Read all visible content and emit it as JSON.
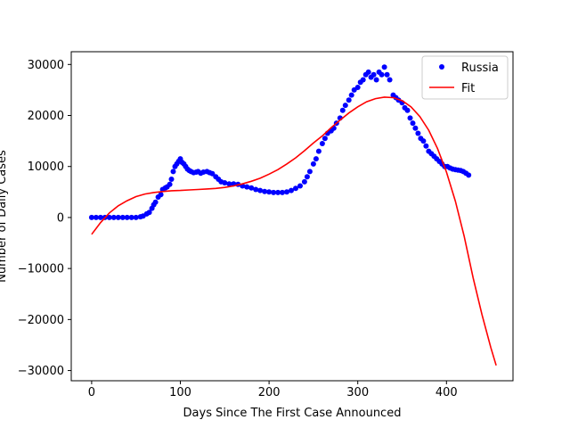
{
  "chart_data": {
    "type": "scatter",
    "xlabel": "Days Since The First Case Announced",
    "ylabel": "Number of Daily Cases",
    "xlim": [
      -23,
      475
    ],
    "ylim": [
      -32000,
      32500
    ],
    "xticks": [
      0,
      100,
      200,
      300,
      400
    ],
    "yticks": [
      -30000,
      -20000,
      -10000,
      0,
      10000,
      20000,
      30000
    ],
    "legend_position": "top-right",
    "grid": false,
    "series": [
      {
        "name": "Russia",
        "kind": "scatter",
        "color": "#0000ff",
        "points": [
          [
            0,
            0
          ],
          [
            5,
            0
          ],
          [
            10,
            0
          ],
          [
            15,
            0
          ],
          [
            20,
            0
          ],
          [
            25,
            0
          ],
          [
            30,
            0
          ],
          [
            35,
            0
          ],
          [
            40,
            0
          ],
          [
            45,
            0
          ],
          [
            50,
            0
          ],
          [
            55,
            150
          ],
          [
            58,
            300
          ],
          [
            62,
            700
          ],
          [
            65,
            1000
          ],
          [
            68,
            1800
          ],
          [
            70,
            2500
          ],
          [
            72,
            3000
          ],
          [
            75,
            4000
          ],
          [
            78,
            4500
          ],
          [
            80,
            5500
          ],
          [
            83,
            5800
          ],
          [
            85,
            6000
          ],
          [
            88,
            6500
          ],
          [
            90,
            7500
          ],
          [
            92,
            9000
          ],
          [
            94,
            10000
          ],
          [
            96,
            10500
          ],
          [
            98,
            11000
          ],
          [
            100,
            11500
          ],
          [
            102,
            10800
          ],
          [
            104,
            10500
          ],
          [
            106,
            10000
          ],
          [
            108,
            9500
          ],
          [
            110,
            9200
          ],
          [
            112,
            9000
          ],
          [
            115,
            8800
          ],
          [
            118,
            8900
          ],
          [
            120,
            9000
          ],
          [
            123,
            8700
          ],
          [
            126,
            8900
          ],
          [
            130,
            9000
          ],
          [
            133,
            8800
          ],
          [
            136,
            8600
          ],
          [
            140,
            8000
          ],
          [
            143,
            7500
          ],
          [
            146,
            7000
          ],
          [
            150,
            6800
          ],
          [
            155,
            6600
          ],
          [
            160,
            6600
          ],
          [
            165,
            6500
          ],
          [
            170,
            6200
          ],
          [
            175,
            6000
          ],
          [
            180,
            5800
          ],
          [
            185,
            5500
          ],
          [
            190,
            5300
          ],
          [
            195,
            5100
          ],
          [
            200,
            5000
          ],
          [
            205,
            4900
          ],
          [
            210,
            4900
          ],
          [
            215,
            4900
          ],
          [
            220,
            5000
          ],
          [
            225,
            5300
          ],
          [
            230,
            5700
          ],
          [
            235,
            6200
          ],
          [
            240,
            7000
          ],
          [
            243,
            8000
          ],
          [
            246,
            9000
          ],
          [
            250,
            10500
          ],
          [
            253,
            11500
          ],
          [
            256,
            13000
          ],
          [
            260,
            14500
          ],
          [
            263,
            15500
          ],
          [
            266,
            16500
          ],
          [
            270,
            17000
          ],
          [
            273,
            17500
          ],
          [
            276,
            18500
          ],
          [
            280,
            19500
          ],
          [
            283,
            21000
          ],
          [
            286,
            22000
          ],
          [
            290,
            23000
          ],
          [
            293,
            24000
          ],
          [
            296,
            25000
          ],
          [
            300,
            25500
          ],
          [
            303,
            26500
          ],
          [
            306,
            27000
          ],
          [
            309,
            28000
          ],
          [
            312,
            28500
          ],
          [
            315,
            27500
          ],
          [
            318,
            28000
          ],
          [
            321,
            27000
          ],
          [
            324,
            28500
          ],
          [
            327,
            28000
          ],
          [
            330,
            29500
          ],
          [
            333,
            28000
          ],
          [
            336,
            27000
          ],
          [
            340,
            24000
          ],
          [
            343,
            23500
          ],
          [
            346,
            23000
          ],
          [
            350,
            22500
          ],
          [
            353,
            21500
          ],
          [
            356,
            21000
          ],
          [
            359,
            19500
          ],
          [
            362,
            18500
          ],
          [
            365,
            17500
          ],
          [
            368,
            16500
          ],
          [
            371,
            15500
          ],
          [
            374,
            15000
          ],
          [
            377,
            14000
          ],
          [
            380,
            13000
          ],
          [
            383,
            12500
          ],
          [
            386,
            12000
          ],
          [
            389,
            11500
          ],
          [
            392,
            11000
          ],
          [
            395,
            10500
          ],
          [
            398,
            10000
          ],
          [
            401,
            10000
          ],
          [
            404,
            9700
          ],
          [
            407,
            9500
          ],
          [
            410,
            9400
          ],
          [
            413,
            9300
          ],
          [
            416,
            9200
          ],
          [
            419,
            9000
          ],
          [
            422,
            8700
          ],
          [
            425,
            8300
          ]
        ]
      },
      {
        "name": "Fit",
        "kind": "line",
        "color": "#ff0000",
        "points": [
          [
            0,
            -3300
          ],
          [
            10,
            -1000
          ],
          [
            20,
            900
          ],
          [
            30,
            2300
          ],
          [
            40,
            3300
          ],
          [
            50,
            4100
          ],
          [
            60,
            4600
          ],
          [
            70,
            4900
          ],
          [
            80,
            5100
          ],
          [
            90,
            5250
          ],
          [
            100,
            5300
          ],
          [
            110,
            5400
          ],
          [
            120,
            5500
          ],
          [
            130,
            5600
          ],
          [
            140,
            5700
          ],
          [
            150,
            5900
          ],
          [
            160,
            6200
          ],
          [
            170,
            6600
          ],
          [
            180,
            7100
          ],
          [
            190,
            7700
          ],
          [
            200,
            8500
          ],
          [
            210,
            9400
          ],
          [
            220,
            10500
          ],
          [
            230,
            11700
          ],
          [
            240,
            13100
          ],
          [
            250,
            14600
          ],
          [
            260,
            16000
          ],
          [
            270,
            17600
          ],
          [
            280,
            19100
          ],
          [
            290,
            20500
          ],
          [
            300,
            21700
          ],
          [
            310,
            22700
          ],
          [
            320,
            23300
          ],
          [
            330,
            23600
          ],
          [
            340,
            23500
          ],
          [
            350,
            22900
          ],
          [
            360,
            21700
          ],
          [
            370,
            19800
          ],
          [
            380,
            17100
          ],
          [
            390,
            13500
          ],
          [
            400,
            8900
          ],
          [
            410,
            3200
          ],
          [
            420,
            -3700
          ],
          [
            430,
            -11800
          ],
          [
            440,
            -19000
          ],
          [
            450,
            -25500
          ],
          [
            456,
            -29000
          ]
        ]
      }
    ]
  }
}
